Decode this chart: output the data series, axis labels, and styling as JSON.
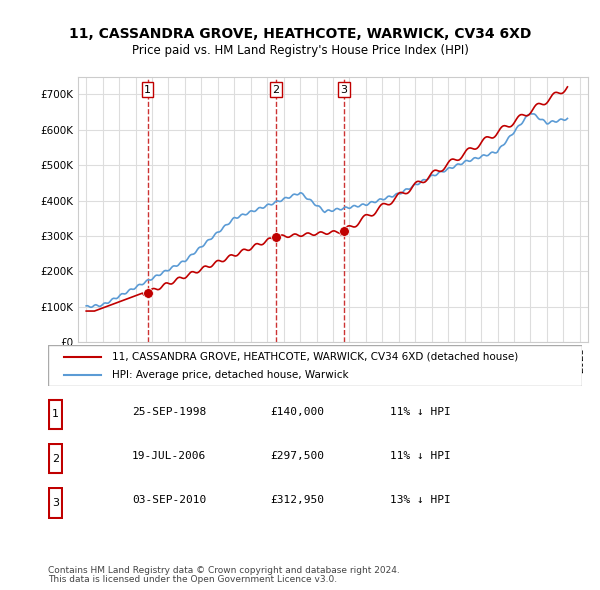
{
  "title": "11, CASSANDRA GROVE, HEATHCOTE, WARWICK, CV34 6XD",
  "subtitle": "Price paid vs. HM Land Registry's House Price Index (HPI)",
  "hpi_label": "HPI: Average price, detached house, Warwick",
  "property_label": "11, CASSANDRA GROVE, HEATHCOTE, WARWICK, CV34 6XD (detached house)",
  "purchases": [
    {
      "num": 1,
      "date": "25-SEP-1998",
      "price": 140000,
      "pct": "11%",
      "x": 1998.73
    },
    {
      "num": 2,
      "date": "19-JUL-2006",
      "price": 297500,
      "pct": "11%",
      "x": 2006.54
    },
    {
      "num": 3,
      "date": "03-SEP-2010",
      "price": 312950,
      "pct": "13%",
      "x": 2010.67
    }
  ],
  "footer_line1": "Contains HM Land Registry data © Crown copyright and database right 2024.",
  "footer_line2": "This data is licensed under the Open Government Licence v3.0.",
  "hpi_color": "#5b9bd5",
  "property_color": "#c00000",
  "purchase_marker_color": "#c00000",
  "vline_color": "#c00000",
  "background_color": "#ffffff",
  "grid_color": "#dddddd",
  "ylim": [
    0,
    750000
  ],
  "xlim": [
    1994.5,
    2025.5
  ],
  "hpi_data_x": [
    1995,
    1995.083,
    1995.167,
    1995.25,
    1995.333,
    1995.417,
    1995.5,
    1995.583,
    1995.667,
    1995.75,
    1995.833,
    1995.917,
    1996,
    1996.083,
    1996.167,
    1996.25,
    1996.333,
    1996.417,
    1996.5,
    1996.583,
    1996.667,
    1996.75,
    1996.833,
    1996.917,
    1997,
    1997.083,
    1997.167,
    1997.25,
    1997.333,
    1997.417,
    1997.5,
    1997.583,
    1997.667,
    1997.75,
    1997.833,
    1997.917,
    1998,
    1998.083,
    1998.167,
    1998.25,
    1998.333,
    1998.417,
    1998.5,
    1998.583,
    1998.667,
    1998.75,
    1998.833,
    1998.917,
    1999,
    1999.083,
    1999.167,
    1999.25,
    1999.333,
    1999.417,
    1999.5,
    1999.583,
    1999.667,
    1999.75,
    1999.833,
    1999.917,
    2000,
    2000.083,
    2000.167,
    2000.25,
    2000.333,
    2000.417,
    2000.5,
    2000.583,
    2000.667,
    2000.75,
    2000.833,
    2000.917,
    2001,
    2001.083,
    2001.167,
    2001.25,
    2001.333,
    2001.417,
    2001.5,
    2001.583,
    2001.667,
    2001.75,
    2001.833,
    2001.917,
    2002,
    2002.083,
    2002.167,
    2002.25,
    2002.333,
    2002.417,
    2002.5,
    2002.583,
    2002.667,
    2002.75,
    2002.833,
    2002.917,
    2003,
    2003.083,
    2003.167,
    2003.25,
    2003.333,
    2003.417,
    2003.5,
    2003.583,
    2003.667,
    2003.75,
    2003.833,
    2003.917,
    2004,
    2004.083,
    2004.167,
    2004.25,
    2004.333,
    2004.417,
    2004.5,
    2004.583,
    2004.667,
    2004.75,
    2004.833,
    2004.917,
    2005,
    2005.083,
    2005.167,
    2005.25,
    2005.333,
    2005.417,
    2005.5,
    2005.583,
    2005.667,
    2005.75,
    2005.833,
    2005.917,
    2006,
    2006.083,
    2006.167,
    2006.25,
    2006.333,
    2006.417,
    2006.5,
    2006.583,
    2006.667,
    2006.75,
    2006.833,
    2006.917,
    2007,
    2007.083,
    2007.167,
    2007.25,
    2007.333,
    2007.417,
    2007.5,
    2007.583,
    2007.667,
    2007.75,
    2007.833,
    2007.917,
    2008,
    2008.083,
    2008.167,
    2008.25,
    2008.333,
    2008.417,
    2008.5,
    2008.583,
    2008.667,
    2008.75,
    2008.833,
    2008.917,
    2009,
    2009.083,
    2009.167,
    2009.25,
    2009.333,
    2009.417,
    2009.5,
    2009.583,
    2009.667,
    2009.75,
    2009.833,
    2009.917,
    2010,
    2010.083,
    2010.167,
    2010.25,
    2010.333,
    2010.417,
    2010.5,
    2010.583,
    2010.667,
    2010.75,
    2010.833,
    2010.917,
    2011,
    2011.083,
    2011.167,
    2011.25,
    2011.333,
    2011.417,
    2011.5,
    2011.583,
    2011.667,
    2011.75,
    2011.833,
    2011.917,
    2012,
    2012.083,
    2012.167,
    2012.25,
    2012.333,
    2012.417,
    2012.5,
    2012.583,
    2012.667,
    2012.75,
    2012.833,
    2012.917,
    2013,
    2013.083,
    2013.167,
    2013.25,
    2013.333,
    2013.417,
    2013.5,
    2013.583,
    2013.667,
    2013.75,
    2013.833,
    2013.917,
    2014,
    2014.083,
    2014.167,
    2014.25,
    2014.333,
    2014.417,
    2014.5,
    2014.583,
    2014.667,
    2014.75,
    2014.833,
    2014.917,
    2015,
    2015.083,
    2015.167,
    2015.25,
    2015.333,
    2015.417,
    2015.5,
    2015.583,
    2015.667,
    2015.75,
    2015.833,
    2015.917,
    2016,
    2016.083,
    2016.167,
    2016.25,
    2016.333,
    2016.417,
    2016.5,
    2016.583,
    2016.667,
    2016.75,
    2016.833,
    2016.917,
    2017,
    2017.083,
    2017.167,
    2017.25,
    2017.333,
    2017.417,
    2017.5,
    2017.583,
    2017.667,
    2017.75,
    2017.833,
    2017.917,
    2018,
    2018.083,
    2018.167,
    2018.25,
    2018.333,
    2018.417,
    2018.5,
    2018.583,
    2018.667,
    2018.75,
    2018.833,
    2018.917,
    2019,
    2019.083,
    2019.167,
    2019.25,
    2019.333,
    2019.417,
    2019.5,
    2019.583,
    2019.667,
    2019.75,
    2019.833,
    2019.917,
    2020,
    2020.083,
    2020.167,
    2020.25,
    2020.333,
    2020.417,
    2020.5,
    2020.583,
    2020.667,
    2020.75,
    2020.833,
    2020.917,
    2021,
    2021.083,
    2021.167,
    2021.25,
    2021.333,
    2021.417,
    2021.5,
    2021.583,
    2021.667,
    2021.75,
    2021.833,
    2021.917,
    2022,
    2022.083,
    2022.167,
    2022.25,
    2022.333,
    2022.417,
    2022.5,
    2022.583,
    2022.667,
    2022.75,
    2022.833,
    2022.917,
    2023,
    2023.083,
    2023.167,
    2023.25,
    2023.333,
    2023.417,
    2023.5,
    2023.583,
    2023.667,
    2023.75,
    2023.833,
    2023.917,
    2024,
    2024.083,
    2024.167,
    2024.25
  ]
}
